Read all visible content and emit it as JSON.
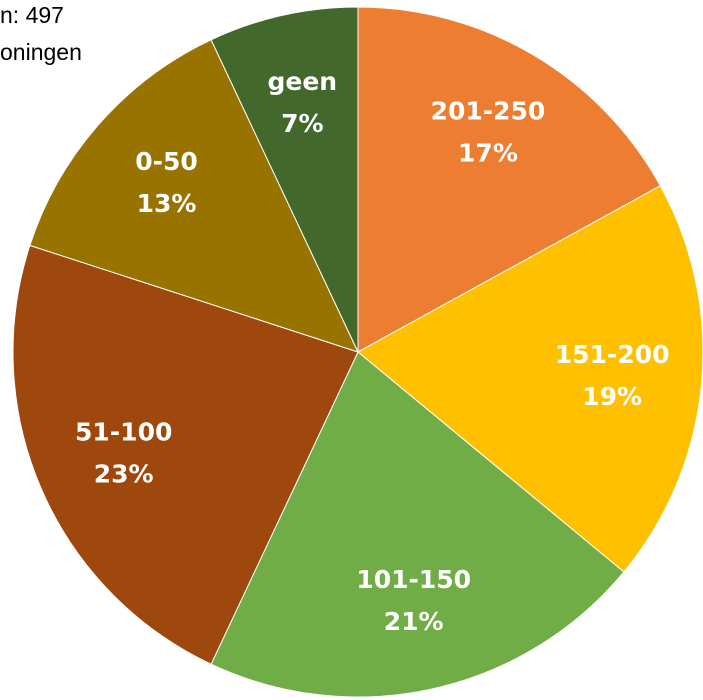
{
  "chart_data": {
    "type": "pie",
    "subtitle": [
      "n: 497",
      "oningen"
    ],
    "categories": [
      "201-250",
      "151-200",
      "101-150",
      "51-100",
      "0-50",
      "geen"
    ],
    "values": [
      17,
      19,
      21,
      23,
      13,
      7
    ],
    "value_labels": [
      "17%",
      "19%",
      "21%",
      "23%",
      "13%",
      "7%"
    ],
    "colors": [
      "#ED7D31",
      "#FFC000",
      "#70AD47",
      "#9E480E",
      "#997300",
      "#43682B"
    ]
  }
}
